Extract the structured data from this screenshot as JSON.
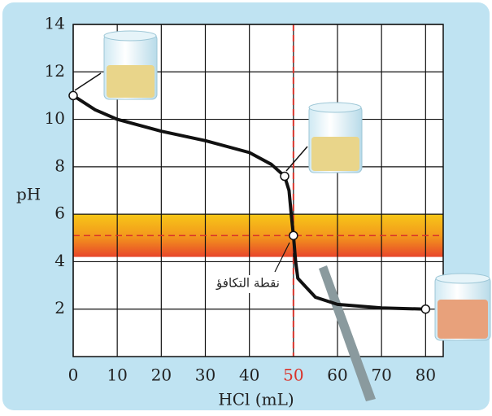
{
  "chart_data": {
    "type": "line",
    "x_label": "HCl (mL)",
    "y_label": "pH",
    "annotation": "نقطة التكافؤ",
    "xlim": [
      0,
      84
    ],
    "ylim": [
      0,
      14
    ],
    "xticks": [
      0,
      10,
      20,
      30,
      40,
      50,
      60,
      70,
      80
    ],
    "yticks": [
      2,
      4,
      6,
      8,
      10,
      12,
      14
    ],
    "grid": true,
    "series": [
      {
        "name": "pH",
        "color": "#111111",
        "x": [
          0,
          5,
          10,
          20,
          30,
          40,
          45,
          48,
          49,
          49.5,
          50,
          50.5,
          51,
          55,
          60,
          70,
          80
        ],
        "values": [
          11,
          10.4,
          10,
          9.5,
          9.1,
          8.6,
          8.1,
          7.6,
          7,
          6,
          5.1,
          4,
          3.3,
          2.5,
          2.2,
          2.05,
          2
        ]
      }
    ],
    "marked_points": {
      "x": [
        0,
        48,
        50,
        80
      ],
      "values": [
        11,
        7.6,
        5.1,
        2
      ]
    },
    "indicator_band": [
      4.2,
      6
    ],
    "hline": {
      "value": 5.1,
      "color": "#d9342b"
    },
    "vline": {
      "value": 50,
      "color": "#d9342b"
    }
  }
}
